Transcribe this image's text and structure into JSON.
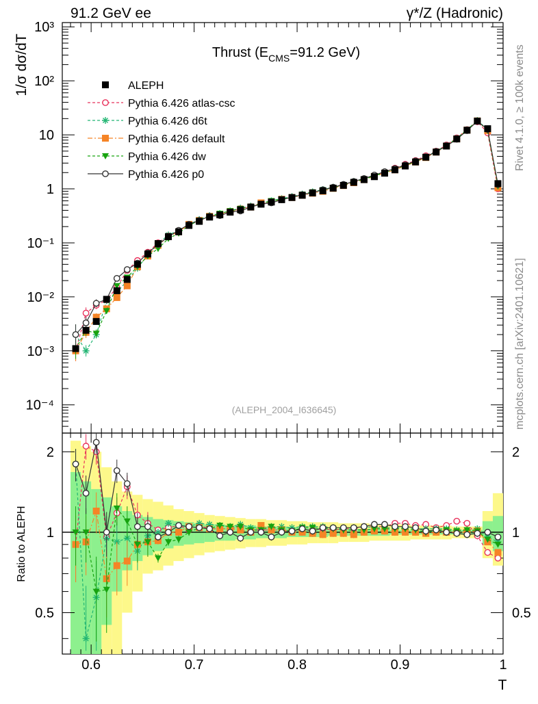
{
  "header": {
    "left": "91.2 GeV ee",
    "right": "γ*/Z (Hadronic)"
  },
  "side": {
    "rivet": "Rivet 4.1.0, ≥ 100k events",
    "mcplots": "mcplots.cern.ch [arXiv:2401.10621]"
  },
  "chart_data": [
    {
      "type": "scatter",
      "title": "Thrust (E_CMS=91.2 GeV)",
      "title_parts": {
        "main": "Thrust (E",
        "sub": "CMS",
        "tail": "=91.2 GeV)"
      },
      "watermark": "(ALEPH_2004_I636645)",
      "xlabel": "T",
      "ylabel": "1/σ  dσ/dT",
      "yscale": "log",
      "xlim": [
        0.572,
        1.0
      ],
      "ylim": [
        3e-05,
        1200
      ],
      "x_ticks": [
        "0.6",
        "0.7",
        "0.8",
        "0.9",
        "1"
      ],
      "x_tick_values": [
        0.6,
        0.7,
        0.8,
        0.9,
        1.0
      ],
      "y_ticks": [
        "10⁻⁴",
        "10⁻³",
        "10⁻²",
        "10⁻¹",
        "1",
        "10",
        "10²",
        "10³"
      ],
      "y_tick_values": [
        0.0001,
        0.001,
        0.01,
        0.1,
        1,
        10,
        100,
        1000
      ],
      "x": [
        0.585,
        0.595,
        0.605,
        0.615,
        0.625,
        0.635,
        0.645,
        0.655,
        0.665,
        0.675,
        0.685,
        0.695,
        0.705,
        0.715,
        0.725,
        0.735,
        0.745,
        0.755,
        0.765,
        0.775,
        0.785,
        0.795,
        0.805,
        0.815,
        0.825,
        0.835,
        0.845,
        0.855,
        0.865,
        0.875,
        0.885,
        0.895,
        0.905,
        0.915,
        0.925,
        0.935,
        0.945,
        0.955,
        0.965,
        0.975,
        0.985,
        0.995
      ],
      "series": [
        {
          "name": "ALEPH",
          "color": "#000000",
          "marker": "square",
          "line": "none",
          "values": [
            0.0011,
            0.0024,
            0.0035,
            0.009,
            0.013,
            0.021,
            0.04,
            0.062,
            0.097,
            0.13,
            0.16,
            0.21,
            0.25,
            0.3,
            0.33,
            0.37,
            0.41,
            0.46,
            0.52,
            0.57,
            0.63,
            0.69,
            0.76,
            0.84,
            0.92,
            1.03,
            1.16,
            1.32,
            1.48,
            1.68,
            1.95,
            2.25,
            2.65,
            3.15,
            3.85,
            4.8,
            6.2,
            8.4,
            12.2,
            18.0,
            13.0,
            1.25
          ]
        },
        {
          "name": "Pythia 6.426 atlas-csc",
          "color": "#e8305a",
          "marker": "open-circle",
          "line": "dashed",
          "values": [
            0.001,
            0.005,
            0.007,
            0.0087,
            0.015,
            0.031,
            0.047,
            0.067,
            0.1,
            0.135,
            0.17,
            0.215,
            0.26,
            0.31,
            0.34,
            0.38,
            0.43,
            0.47,
            0.53,
            0.58,
            0.64,
            0.7,
            0.78,
            0.86,
            0.95,
            1.05,
            1.19,
            1.36,
            1.55,
            1.76,
            2.05,
            2.42,
            2.85,
            3.35,
            4.1,
            5.0,
            6.5,
            8.8,
            12.5,
            17.5,
            10.9,
            1.0
          ]
        },
        {
          "name": "Pythia 6.426 d6t",
          "color": "#22b573",
          "marker": "star",
          "line": "dashed",
          "values": [
            0.002,
            0.001,
            0.002,
            0.0085,
            0.012,
            0.02,
            0.034,
            0.06,
            0.097,
            0.14,
            0.17,
            0.22,
            0.27,
            0.32,
            0.35,
            0.39,
            0.44,
            0.48,
            0.54,
            0.6,
            0.66,
            0.72,
            0.8,
            0.88,
            0.97,
            1.07,
            1.2,
            1.37,
            1.55,
            1.75,
            2.02,
            2.35,
            2.75,
            3.25,
            3.95,
            4.95,
            6.35,
            8.6,
            12.4,
            18.5,
            12.5,
            1.15
          ]
        },
        {
          "name": "Pythia 6.426 default",
          "color": "#f58426",
          "marker": "square",
          "line": "dashdot",
          "values": [
            0.001,
            0.0022,
            0.0042,
            0.006,
            0.0097,
            0.016,
            0.036,
            0.057,
            0.09,
            0.13,
            0.16,
            0.22,
            0.26,
            0.31,
            0.34,
            0.38,
            0.42,
            0.46,
            0.55,
            0.58,
            0.64,
            0.69,
            0.76,
            0.83,
            0.9,
            1.02,
            1.15,
            1.3,
            1.48,
            1.7,
            1.96,
            2.25,
            2.66,
            3.14,
            3.8,
            4.8,
            6.2,
            8.4,
            12.2,
            18.1,
            12.0,
            1.05
          ]
        },
        {
          "name": "Pythia 6.426 dw",
          "color": "#17a30f",
          "marker": "triangle-down",
          "line": "dashed",
          "values": [
            0.0011,
            0.0024,
            0.0021,
            0.0055,
            0.016,
            0.023,
            0.036,
            0.057,
            0.078,
            0.12,
            0.15,
            0.21,
            0.26,
            0.31,
            0.35,
            0.39,
            0.43,
            0.47,
            0.53,
            0.6,
            0.64,
            0.7,
            0.79,
            0.87,
            0.95,
            1.06,
            1.18,
            1.34,
            1.51,
            1.73,
            2.01,
            2.31,
            2.72,
            3.2,
            3.85,
            4.9,
            6.3,
            8.5,
            12.4,
            18.2,
            12.2,
            1.12
          ]
        },
        {
          "name": "Pythia 6.426 p0",
          "color": "#333333",
          "marker": "open-circle",
          "line": "solid",
          "values": [
            0.002,
            0.0033,
            0.0076,
            0.009,
            0.022,
            0.032,
            0.042,
            0.065,
            0.093,
            0.13,
            0.17,
            0.22,
            0.26,
            0.31,
            0.32,
            0.37,
            0.39,
            0.46,
            0.52,
            0.55,
            0.63,
            0.7,
            0.78,
            0.85,
            0.96,
            1.07,
            1.21,
            1.37,
            1.55,
            1.8,
            2.08,
            2.37,
            2.78,
            3.28,
            3.9,
            4.9,
            6.2,
            8.3,
            12.0,
            17.8,
            12.6,
            1.2
          ]
        }
      ]
    },
    {
      "type": "scatter",
      "title": "",
      "xlabel": "T",
      "ylabel": "Ratio to ALEPH",
      "xlim": [
        0.572,
        1.0
      ],
      "ylim": [
        0.35,
        2.35
      ],
      "y_ticks": [
        "0.5",
        "1",
        "2"
      ],
      "y_tick_values": [
        0.5,
        1,
        2
      ],
      "reference_line": 1,
      "band_yellow": {
        "lo": [
          0.35,
          0.35,
          0.35,
          0.35,
          0.35,
          0.5,
          0.6,
          0.7,
          0.72,
          0.75,
          0.78,
          0.8,
          0.82,
          0.84,
          0.85,
          0.86,
          0.87,
          0.88,
          0.88,
          0.89,
          0.89,
          0.9,
          0.9,
          0.91,
          0.91,
          0.91,
          0.92,
          0.92,
          0.92,
          0.93,
          0.93,
          0.93,
          0.93,
          0.94,
          0.94,
          0.94,
          0.94,
          0.95,
          0.95,
          0.95,
          0.8,
          0.75
        ],
        "hi": [
          2.2,
          2.1,
          2.0,
          1.75,
          1.55,
          1.42,
          1.38,
          1.33,
          1.3,
          1.26,
          1.22,
          1.2,
          1.18,
          1.16,
          1.15,
          1.14,
          1.13,
          1.12,
          1.12,
          1.11,
          1.11,
          1.1,
          1.1,
          1.09,
          1.09,
          1.09,
          1.08,
          1.08,
          1.08,
          1.07,
          1.07,
          1.07,
          1.07,
          1.06,
          1.06,
          1.06,
          1.06,
          1.05,
          1.05,
          1.05,
          1.2,
          1.4
        ]
      },
      "band_green": {
        "lo": [
          0.35,
          0.35,
          0.35,
          0.45,
          0.6,
          0.72,
          0.78,
          0.82,
          0.85,
          0.87,
          0.89,
          0.9,
          0.91,
          0.92,
          0.93,
          0.93,
          0.94,
          0.94,
          0.95,
          0.95,
          0.95,
          0.96,
          0.96,
          0.96,
          0.96,
          0.97,
          0.97,
          0.97,
          0.97,
          0.97,
          0.97,
          0.98,
          0.98,
          0.98,
          0.98,
          0.98,
          0.98,
          0.98,
          0.98,
          0.98,
          0.9,
          0.85
        ],
        "hi": [
          1.68,
          1.55,
          1.45,
          1.35,
          1.25,
          1.2,
          1.16,
          1.14,
          1.12,
          1.11,
          1.1,
          1.09,
          1.08,
          1.07,
          1.07,
          1.06,
          1.06,
          1.06,
          1.05,
          1.05,
          1.05,
          1.04,
          1.04,
          1.04,
          1.04,
          1.03,
          1.03,
          1.03,
          1.03,
          1.03,
          1.03,
          1.02,
          1.02,
          1.02,
          1.02,
          1.02,
          1.02,
          1.02,
          1.02,
          1.02,
          1.1,
          1.15
        ]
      },
      "series": [
        {
          "name": "Pythia 6.426 atlas-csc",
          "values": [
            0.9,
            2.1,
            2.0,
            0.96,
            1.18,
            1.48,
            1.16,
            1.08,
            1.02,
            1.04,
            1.06,
            1.02,
            1.06,
            1.03,
            1.03,
            1.03,
            1.05,
            1.02,
            1.02,
            1.02,
            1.02,
            1.01,
            1.02,
            1.02,
            1.03,
            1.02,
            1.03,
            1.03,
            1.05,
            1.05,
            1.05,
            1.08,
            1.08,
            1.06,
            1.07,
            1.04,
            1.06,
            1.1,
            1.08,
            0.97,
            0.84,
            0.8
          ]
        },
        {
          "name": "Pythia 6.426 d6t",
          "values": [
            1.8,
            0.4,
            0.57,
            0.95,
            0.92,
            0.95,
            0.85,
            0.97,
            1.0,
            1.08,
            1.06,
            1.05,
            1.08,
            1.07,
            1.06,
            1.05,
            1.07,
            1.04,
            1.04,
            1.05,
            1.05,
            1.04,
            1.05,
            1.05,
            1.05,
            1.04,
            1.03,
            1.04,
            1.05,
            1.04,
            1.04,
            1.04,
            1.04,
            1.03,
            1.03,
            1.03,
            1.03,
            1.02,
            1.02,
            1.03,
            0.96,
            0.92
          ]
        },
        {
          "name": "Pythia 6.426 default",
          "values": [
            0.9,
            0.92,
            1.2,
            0.67,
            0.75,
            0.78,
            0.9,
            0.92,
            0.93,
            1.0,
            1.0,
            1.05,
            1.04,
            1.03,
            1.03,
            1.03,
            1.02,
            1.0,
            1.06,
            1.02,
            1.02,
            1.0,
            1.0,
            0.99,
            0.98,
            0.99,
            0.99,
            0.98,
            1.0,
            1.01,
            1.01,
            1.0,
            1.0,
            1.0,
            0.99,
            1.0,
            1.0,
            1.0,
            1.0,
            1.01,
            0.92,
            0.84
          ]
        },
        {
          "name": "Pythia 6.426 dw",
          "values": [
            1.0,
            1.0,
            0.6,
            0.61,
            1.23,
            1.1,
            0.9,
            0.92,
            0.8,
            0.92,
            0.94,
            1.0,
            1.04,
            1.03,
            1.06,
            1.05,
            1.05,
            1.02,
            1.02,
            1.05,
            1.02,
            1.01,
            1.04,
            1.04,
            1.03,
            1.03,
            1.02,
            1.02,
            1.02,
            1.03,
            1.03,
            1.03,
            1.03,
            1.02,
            1.0,
            1.02,
            1.02,
            1.01,
            1.02,
            1.01,
            0.94,
            0.9
          ]
        },
        {
          "name": "Pythia 6.426 p0",
          "values": [
            1.8,
            1.4,
            2.17,
            1.0,
            1.7,
            1.52,
            1.05,
            1.05,
            0.96,
            1.0,
            1.06,
            1.05,
            1.04,
            1.03,
            0.97,
            1.0,
            0.95,
            1.0,
            1.0,
            0.96,
            1.0,
            1.01,
            1.03,
            1.01,
            1.04,
            1.04,
            1.04,
            1.04,
            1.05,
            1.07,
            1.07,
            1.05,
            1.05,
            1.04,
            1.01,
            1.02,
            1.0,
            0.99,
            0.98,
            0.99,
            1.0,
            0.96
          ]
        }
      ]
    }
  ],
  "legend": {
    "entries": [
      "ALEPH",
      "Pythia 6.426 atlas-csc",
      "Pythia 6.426 d6t",
      "Pythia 6.426 default",
      "Pythia 6.426 dw",
      "Pythia 6.426 p0"
    ]
  }
}
